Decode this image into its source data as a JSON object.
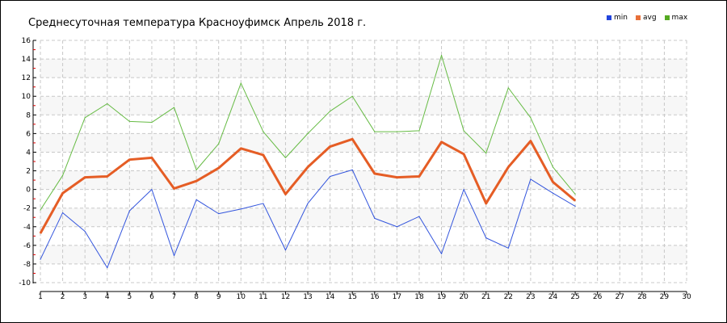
{
  "chart_data": {
    "type": "line",
    "title": "Среднесуточная температура Красноуфимск  Апрель 2018 г.",
    "xlabel": "",
    "ylabel": "",
    "xlim": [
      1,
      30
    ],
    "ylim": [
      -10,
      16
    ],
    "x_ticks": [
      1,
      2,
      3,
      4,
      5,
      6,
      7,
      8,
      9,
      10,
      11,
      12,
      13,
      14,
      15,
      16,
      17,
      18,
      19,
      20,
      21,
      22,
      23,
      24,
      25,
      26,
      27,
      28,
      29,
      30
    ],
    "y_ticks": [
      -10,
      -8,
      -6,
      -4,
      -2,
      0,
      2,
      4,
      6,
      8,
      10,
      12,
      14,
      16
    ],
    "grid": true,
    "legend_position": "top-right",
    "x": [
      1,
      2,
      3,
      4,
      5,
      6,
      7,
      8,
      9,
      10,
      11,
      12,
      13,
      14,
      15,
      16,
      17,
      18,
      19,
      20,
      21,
      22,
      23,
      24,
      25
    ],
    "series": [
      {
        "name": "min",
        "color": "#3355dd",
        "values": [
          -7.5,
          -2.5,
          -4.5,
          -8.4,
          -2.3,
          0,
          -7.1,
          -1.1,
          -2.6,
          -2.1,
          -1.5,
          -6.5,
          -1.5,
          1.4,
          2.1,
          -3.1,
          -4.0,
          -2.9,
          -6.9,
          0,
          -5.2,
          -6.3,
          1.1,
          -0.4,
          -1.8
        ]
      },
      {
        "name": "avg",
        "color": "#e55d25",
        "values": [
          -4.7,
          -0.4,
          1.3,
          1.4,
          3.2,
          3.4,
          0.1,
          0.9,
          2.3,
          4.4,
          3.7,
          -0.5,
          2.4,
          4.6,
          5.4,
          1.7,
          1.3,
          1.4,
          5.1,
          3.8,
          -1.5,
          2.4,
          5.2,
          0.8,
          -1.2
        ]
      },
      {
        "name": "max",
        "color": "#66bb44",
        "values": [
          -2.2,
          1.5,
          7.7,
          9.2,
          7.3,
          7.2,
          8.8,
          2.1,
          4.9,
          11.4,
          6.2,
          3.4,
          6.0,
          8.4,
          10.0,
          6.2,
          6.2,
          6.3,
          14.4,
          6.3,
          3.9,
          10.9,
          7.7,
          2.4,
          -0.5
        ]
      }
    ]
  }
}
